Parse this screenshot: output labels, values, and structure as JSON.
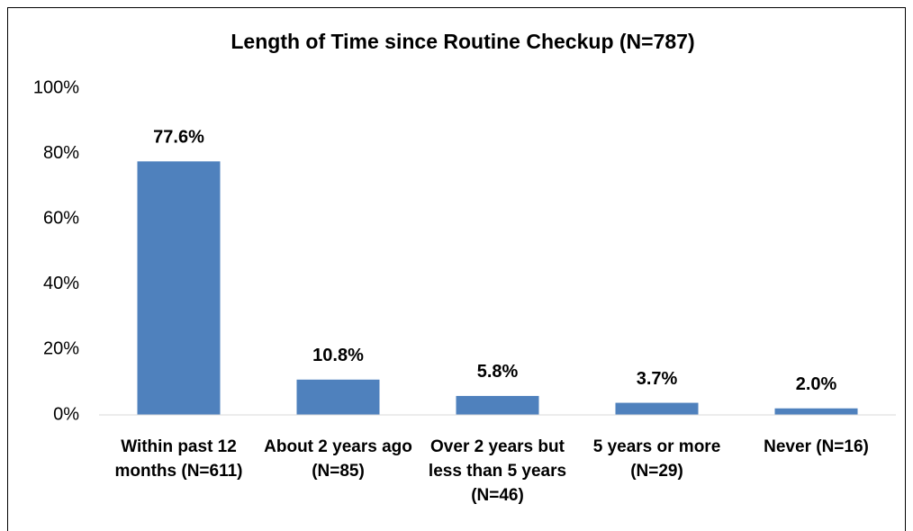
{
  "chart_data": {
    "type": "bar",
    "title": "Length of Time since Routine Checkup (N=787)",
    "categories": [
      "Within past 12 months (N=611)",
      "About 2 years ago (N=85)",
      "Over 2 years but less than 5 years (N=46)",
      "5 years or more (N=29)",
      "Never (N=16)"
    ],
    "values": [
      77.6,
      10.8,
      5.8,
      3.7,
      2.0
    ],
    "value_labels": [
      "77.6%",
      "10.8%",
      "5.8%",
      "3.7%",
      "2.0%"
    ],
    "color": "#4f81bd",
    "ylim": [
      0,
      100
    ],
    "yticks": [
      {
        "value": 0,
        "label": "0%"
      },
      {
        "value": 20,
        "label": "20%"
      },
      {
        "value": 40,
        "label": "40%"
      },
      {
        "value": 60,
        "label": "60%"
      },
      {
        "value": 80,
        "label": "80%"
      },
      {
        "value": 100,
        "label": "100%"
      }
    ],
    "grid": false
  }
}
